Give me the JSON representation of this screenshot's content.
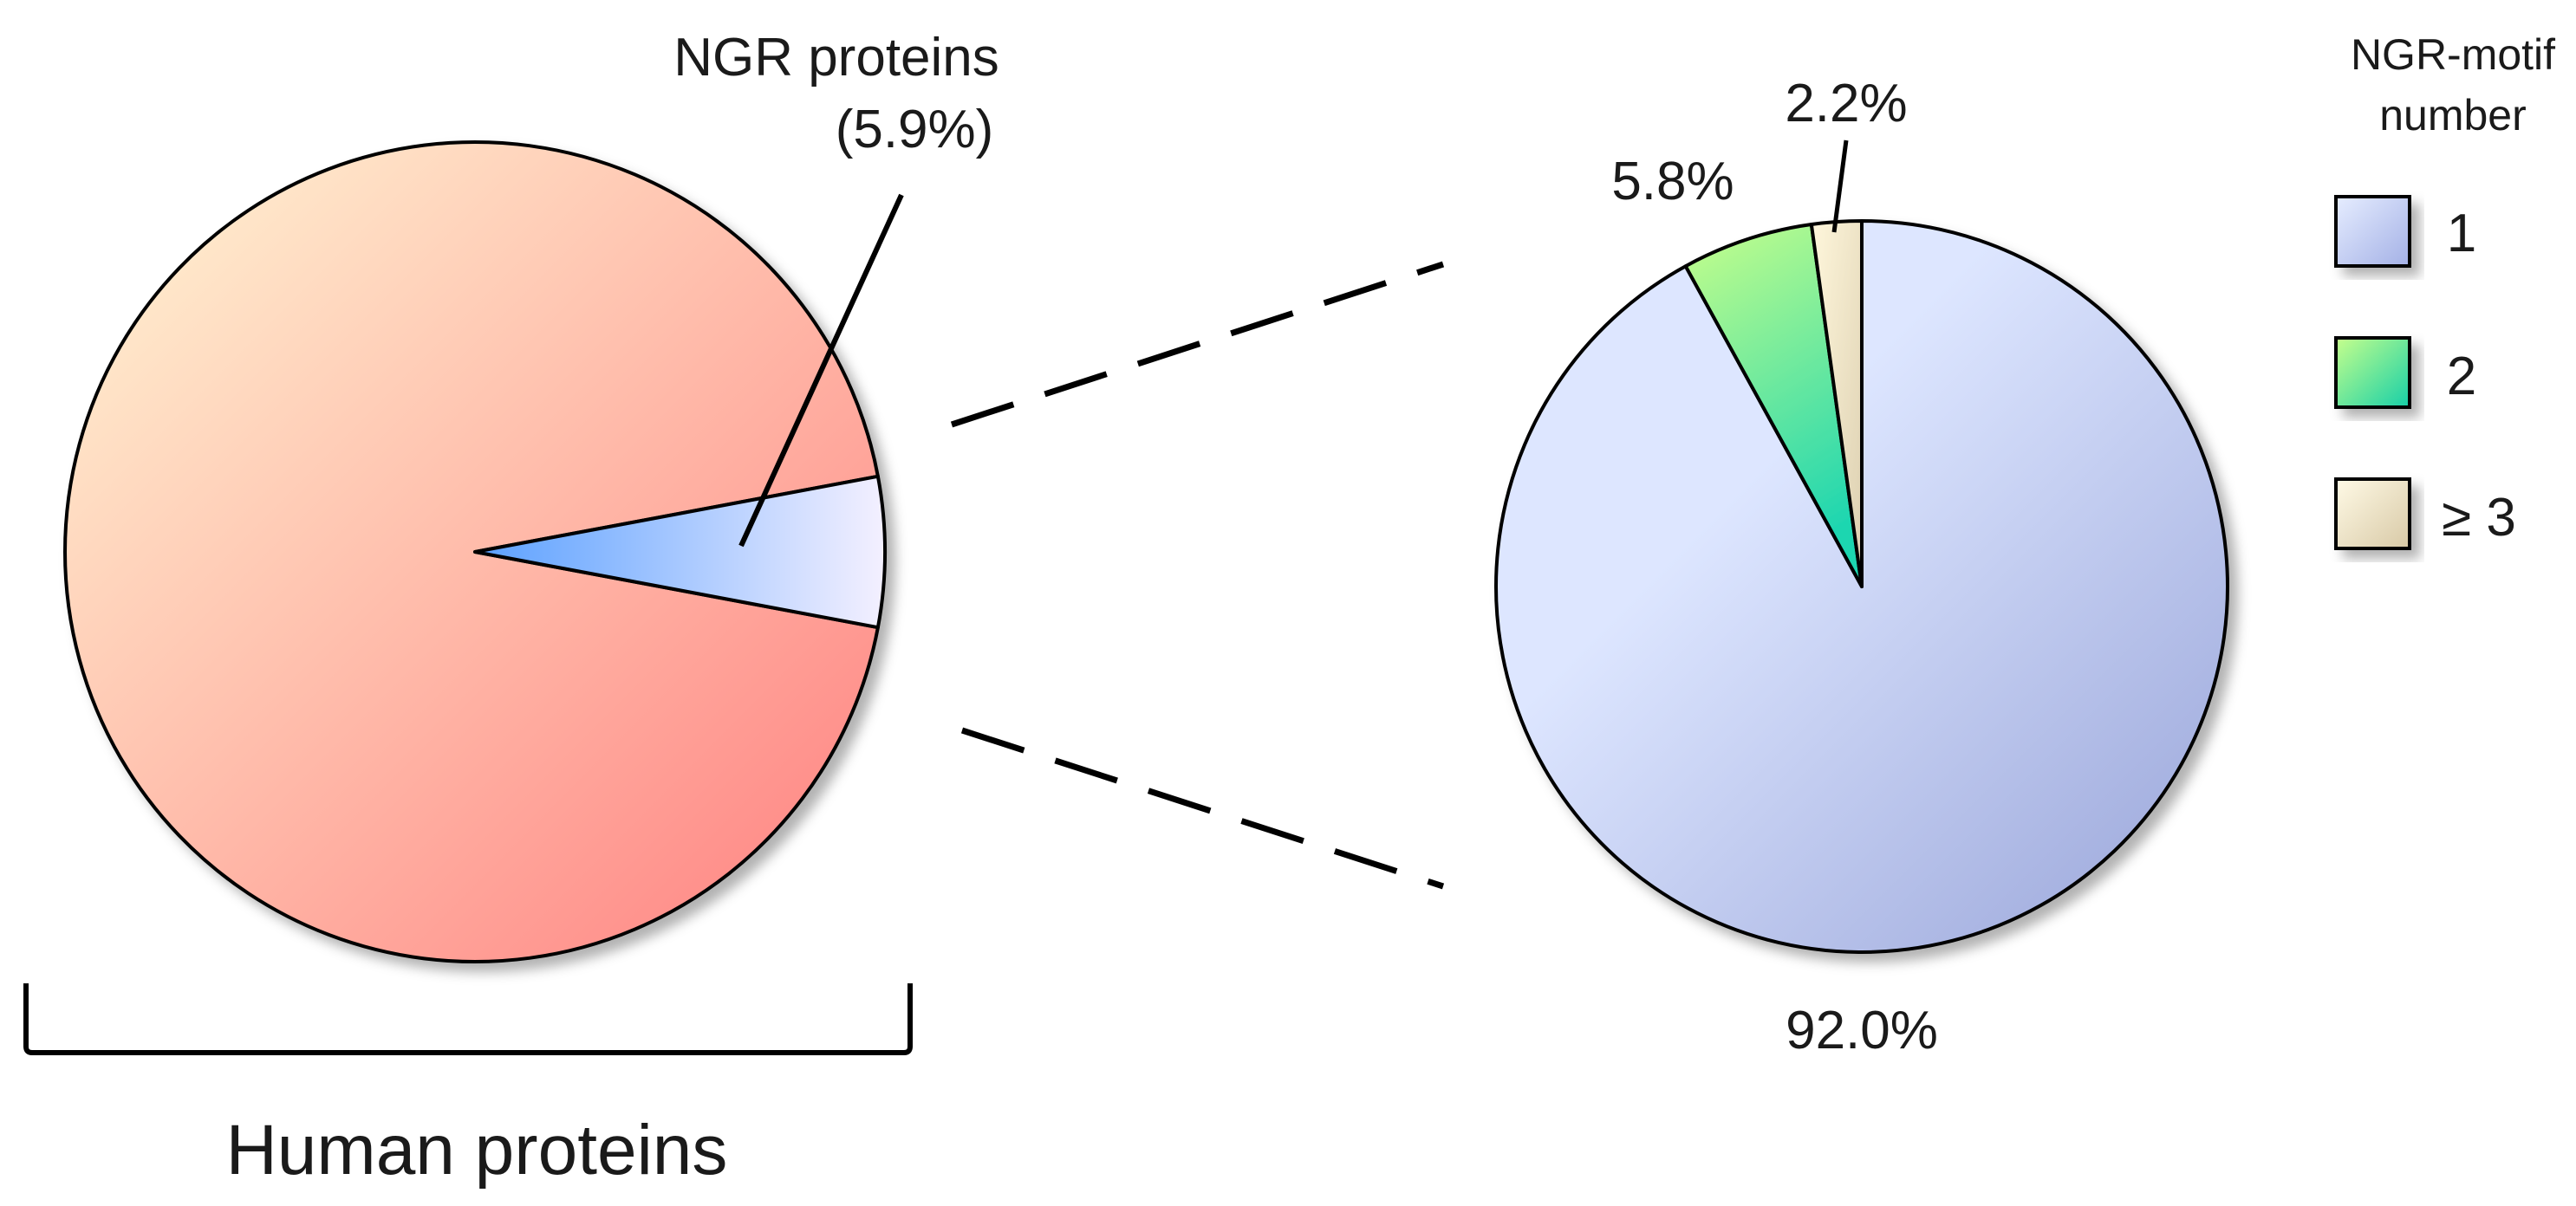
{
  "chart_data": [
    {
      "type": "pie",
      "title": "",
      "caption": "Human proteins",
      "slices": [
        {
          "label": "",
          "value": 94.1
        },
        {
          "label": "NGR proteins",
          "value": 5.9,
          "label_line2": "(5.9%)"
        }
      ]
    },
    {
      "type": "pie",
      "title": "",
      "legend_title_line1": "NGR-motif",
      "legend_title_line2": "number",
      "legend_position": "right",
      "slices": [
        {
          "label": "1",
          "value": 92.0,
          "value_label": "92.0%"
        },
        {
          "label": "2",
          "value": 5.8,
          "value_label": "5.8%"
        },
        {
          "label": "≥ 3",
          "value": 2.2,
          "value_label": "2.2%"
        }
      ]
    }
  ],
  "colors": {
    "others_gradient": [
      "#fff8d6",
      "#ff7f7f"
    ],
    "ngr_gradient": [
      "#5aa0ff",
      "#f4f0ff"
    ],
    "motif1_gradient": [
      "#dde6ff",
      "#97a3d8"
    ],
    "motif2_gradient": [
      "#c8ff8a",
      "#1fd6b0"
    ],
    "motif3_gradient": [
      "#fff7dc",
      "#dccfb0"
    ]
  }
}
